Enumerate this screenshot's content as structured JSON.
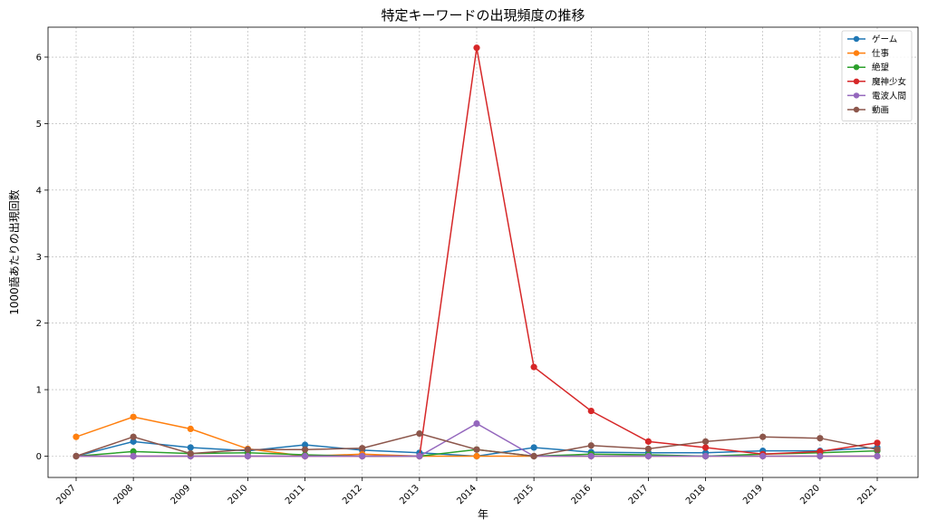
{
  "chart_data": {
    "type": "line",
    "title": "特定キーワードの出現頻度の推移",
    "xlabel": "年",
    "ylabel": "1000語あたりの出現回数",
    "x": [
      2007,
      2008,
      2009,
      2010,
      2011,
      2012,
      2013,
      2014,
      2015,
      2016,
      2017,
      2018,
      2019,
      2020,
      2021
    ],
    "ylim": [
      -0.32,
      6.45
    ],
    "yticks": [
      0,
      1,
      2,
      3,
      4,
      5,
      6
    ],
    "grid": true,
    "legend_position": "top-right",
    "series": [
      {
        "name": "ゲーム",
        "color": "#1f77b4",
        "values": [
          0,
          0.22,
          0.13,
          0.08,
          0.17,
          0.09,
          0.05,
          0,
          0.13,
          0.06,
          0.05,
          0.05,
          0.08,
          0.08,
          0.13
        ]
      },
      {
        "name": "仕事",
        "color": "#ff7f0e",
        "values": [
          0.29,
          0.59,
          0.41,
          0.11,
          0,
          0.03,
          0,
          0,
          0,
          0,
          0,
          0,
          0,
          0,
          0
        ]
      },
      {
        "name": "絶望",
        "color": "#2ca02c",
        "values": [
          0,
          0.07,
          0.04,
          0.05,
          0.02,
          0,
          0,
          0.1,
          0,
          0.03,
          0.02,
          0,
          0.03,
          0.05,
          0.08
        ]
      },
      {
        "name": "魔神少女",
        "color": "#d62728",
        "values": [
          0,
          0,
          0,
          0,
          0,
          0,
          0,
          6.14,
          1.34,
          0.68,
          0.22,
          0.13,
          0.03,
          0.07,
          0.2
        ]
      },
      {
        "name": "電波人間",
        "color": "#9467bd",
        "values": [
          0,
          0,
          0,
          0,
          0,
          0,
          0,
          0.49,
          0,
          0,
          0,
          0,
          0,
          0,
          0
        ]
      },
      {
        "name": "動画",
        "color": "#8c564b",
        "values": [
          0,
          0.29,
          0.04,
          0.1,
          0.1,
          0.12,
          0.34,
          0.1,
          0,
          0.16,
          0.11,
          0.22,
          0.29,
          0.27,
          0.1
        ]
      }
    ]
  }
}
